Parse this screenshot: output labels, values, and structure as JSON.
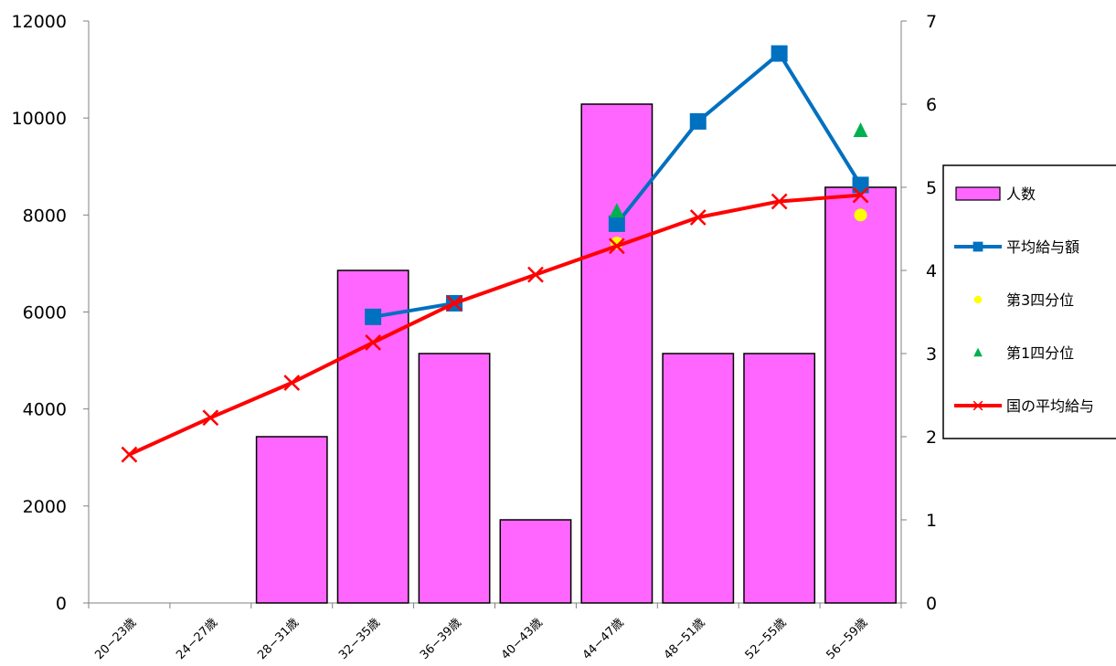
{
  "chart_data": {
    "type": "bar",
    "categories": [
      "20−23歳",
      "24−27歳",
      "28−31歳",
      "32−35歳",
      "36−39歳",
      "40−43歳",
      "44−47歳",
      "48−51歳",
      "52−55歳",
      "56−59歳"
    ],
    "left_axis": {
      "min": 0,
      "max": 12000,
      "ticks": [
        "0",
        "2000",
        "4000",
        "6000",
        "8000",
        "10000",
        "12000"
      ]
    },
    "right_axis": {
      "min": 0,
      "max": 7,
      "ticks": [
        "0",
        "1",
        "2",
        "3",
        "4",
        "5",
        "6",
        "7"
      ]
    },
    "series": [
      {
        "name": "人数",
        "type": "bar",
        "axis": "right",
        "color": "#ff66ff",
        "values": [
          0,
          0,
          2,
          4,
          3,
          1,
          6,
          3,
          3,
          5
        ]
      },
      {
        "name": "平均給与額",
        "type": "line",
        "axis": "left",
        "color": "#0070c0",
        "marker": "square",
        "values": [
          null,
          null,
          null,
          5900,
          6180,
          null,
          7820,
          9930,
          11330,
          8620
        ]
      },
      {
        "name": "第3四分位",
        "type": "scatter",
        "axis": "left",
        "color": "#ffff00",
        "marker": "circle",
        "values": [
          null,
          null,
          null,
          null,
          null,
          null,
          7420,
          null,
          null,
          8000
        ]
      },
      {
        "name": "第1四分位",
        "type": "scatter",
        "axis": "left",
        "color": "#00b050",
        "marker": "triangle",
        "values": [
          null,
          null,
          null,
          null,
          null,
          null,
          8080,
          null,
          null,
          9740
        ]
      },
      {
        "name": "国の平均給与",
        "type": "line",
        "axis": "left",
        "color": "#ff0000",
        "marker": "x",
        "values": [
          3060,
          3820,
          4540,
          5370,
          6180,
          6770,
          7360,
          7950,
          8280,
          8410
        ]
      }
    ],
    "legend_position": "right"
  }
}
